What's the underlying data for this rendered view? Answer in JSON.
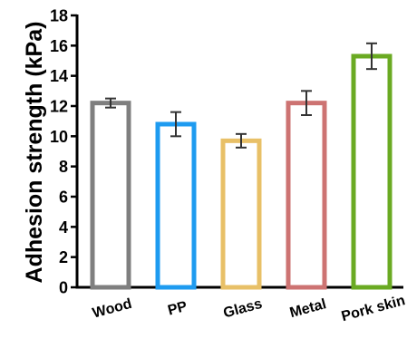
{
  "chart_data": {
    "type": "bar",
    "title": "",
    "xlabel": "",
    "ylabel": "Adhesion strength (kPa)",
    "ylim": [
      0,
      18
    ],
    "yticks": [
      0,
      2,
      4,
      6,
      8,
      10,
      12,
      14,
      16,
      18
    ],
    "categories": [
      "Wood",
      "PP",
      "Glass",
      "Metal",
      "Pork skin"
    ],
    "values": [
      12.2,
      10.8,
      9.7,
      12.2,
      15.3
    ],
    "errors": [
      0.3,
      0.8,
      0.45,
      0.8,
      0.85
    ],
    "colors": [
      "#7f7f7f",
      "#1e9bf0",
      "#e8c067",
      "#cd7372",
      "#6aaa22"
    ],
    "bar_fill": "#ffffff",
    "errorbar_color": "#333333",
    "grid": false,
    "legend": "none"
  }
}
